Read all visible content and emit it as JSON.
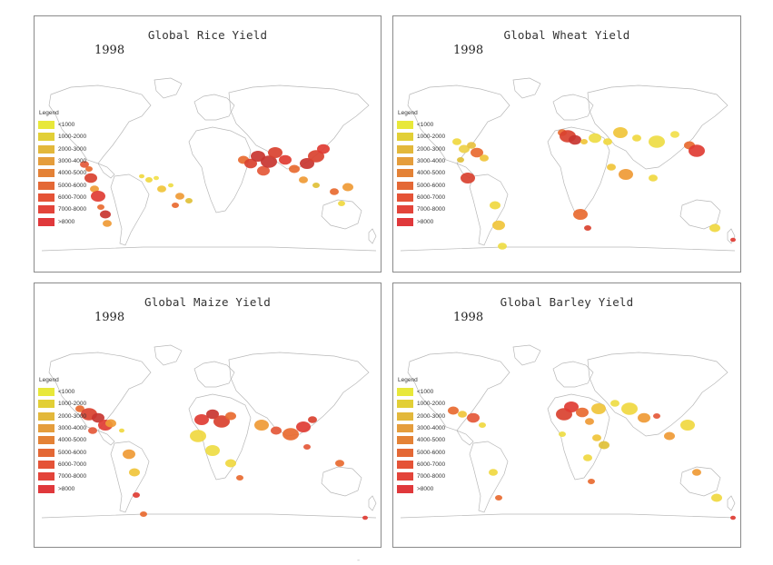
{
  "panels": [
    {
      "title": "Global Rice Yield",
      "year": "1998",
      "legend_title": "Legend",
      "patches": [
        [
          55,
          105,
          2,
          "#e45838"
        ],
        [
          60,
          110,
          1,
          "#e86a30"
        ],
        [
          62,
          120,
          4,
          "#d9412f"
        ],
        [
          66,
          132,
          2,
          "#ef9a35"
        ],
        [
          70,
          140,
          5,
          "#e03c33"
        ],
        [
          73,
          152,
          1,
          "#e86a30"
        ],
        [
          78,
          160,
          3,
          "#c83530"
        ],
        [
          80,
          170,
          2,
          "#ef9a35"
        ],
        [
          118,
          118,
          0,
          "#f0d840"
        ],
        [
          126,
          122,
          1,
          "#f0d840"
        ],
        [
          134,
          120,
          0,
          "#f2e04a"
        ],
        [
          140,
          132,
          2,
          "#f0c43a"
        ],
        [
          150,
          128,
          0,
          "#eedc44"
        ],
        [
          155,
          150,
          1,
          "#e86a30"
        ],
        [
          160,
          140,
          2,
          "#ef9a35"
        ],
        [
          170,
          145,
          1,
          "#e0c037"
        ],
        [
          230,
          100,
          3,
          "#e86a30"
        ],
        [
          238,
          104,
          4,
          "#d9412f"
        ],
        [
          246,
          96,
          5,
          "#c83530"
        ],
        [
          252,
          112,
          4,
          "#e45838"
        ],
        [
          258,
          102,
          6,
          "#c83530"
        ],
        [
          265,
          92,
          5,
          "#d9412f"
        ],
        [
          276,
          100,
          4,
          "#e03c33"
        ],
        [
          286,
          110,
          3,
          "#e86a30"
        ],
        [
          300,
          104,
          5,
          "#c83530"
        ],
        [
          310,
          96,
          6,
          "#d9412f"
        ],
        [
          318,
          88,
          4,
          "#e03c33"
        ],
        [
          296,
          122,
          2,
          "#ef9a35"
        ],
        [
          310,
          128,
          1,
          "#e0c037"
        ],
        [
          330,
          135,
          2,
          "#e86a30"
        ],
        [
          338,
          148,
          1,
          "#f0d840"
        ],
        [
          345,
          130,
          3,
          "#ef9a35"
        ]
      ],
      "legend": [
        {
          "label": "<1000",
          "color": "#e8e83a"
        },
        {
          "label": "1000-2000",
          "color": "#e2cf36"
        },
        {
          "label": "2000-3000",
          "color": "#e3b83b"
        },
        {
          "label": "3000-4000",
          "color": "#e59d3c"
        },
        {
          "label": "4000-5000",
          "color": "#e48236"
        },
        {
          "label": "5000-6000",
          "color": "#e46835"
        },
        {
          "label": "6000-7000",
          "color": "#e55337"
        },
        {
          "label": "7000-8000",
          "color": "#e3443a"
        },
        {
          "label": ">8000",
          "color": "#e0383b"
        }
      ]
    },
    {
      "title": "Global Wheat Yield",
      "year": "1998",
      "legend_title": "Legend",
      "patches": [
        [
          70,
          80,
          2,
          "#f0d840"
        ],
        [
          78,
          88,
          3,
          "#eed046"
        ],
        [
          86,
          84,
          2,
          "#e8c13e"
        ],
        [
          92,
          92,
          4,
          "#e86a30"
        ],
        [
          100,
          98,
          2,
          "#f0c43a"
        ],
        [
          74,
          100,
          1,
          "#e0c037"
        ],
        [
          82,
          120,
          5,
          "#d9412f"
        ],
        [
          112,
          150,
          3,
          "#f0d840"
        ],
        [
          116,
          172,
          4,
          "#f0c43a"
        ],
        [
          120,
          195,
          2,
          "#eedc44"
        ],
        [
          186,
          70,
          2,
          "#e86a30"
        ],
        [
          192,
          74,
          6,
          "#d9412f"
        ],
        [
          200,
          78,
          4,
          "#c83530"
        ],
        [
          210,
          80,
          1,
          "#f0c43a"
        ],
        [
          222,
          76,
          4,
          "#eedc44"
        ],
        [
          236,
          80,
          2,
          "#f0d840"
        ],
        [
          250,
          70,
          5,
          "#f0c43a"
        ],
        [
          268,
          76,
          2,
          "#f0d840"
        ],
        [
          290,
          80,
          6,
          "#eedc44"
        ],
        [
          310,
          72,
          2,
          "#f2e04a"
        ],
        [
          326,
          84,
          3,
          "#e86a30"
        ],
        [
          334,
          90,
          6,
          "#e03c33"
        ],
        [
          240,
          108,
          2,
          "#f0c43a"
        ],
        [
          256,
          116,
          5,
          "#ef9a35"
        ],
        [
          286,
          120,
          2,
          "#f0d840"
        ],
        [
          206,
          160,
          5,
          "#e86a30"
        ],
        [
          214,
          175,
          1,
          "#d9412f"
        ],
        [
          354,
          175,
          3,
          "#f0d840"
        ],
        [
          374,
          188,
          0,
          "#e03c33"
        ]
      ],
      "legend": [
        {
          "label": "<1000",
          "color": "#e8e83a"
        },
        {
          "label": "1000-2000",
          "color": "#e2cf36"
        },
        {
          "label": "2000-3000",
          "color": "#e3b83b"
        },
        {
          "label": "3000-4000",
          "color": "#e59d3c"
        },
        {
          "label": "4000-5000",
          "color": "#e48236"
        },
        {
          "label": "5000-6000",
          "color": "#e46835"
        },
        {
          "label": "6000-7000",
          "color": "#e55337"
        },
        {
          "label": "7000-8000",
          "color": "#e3443a"
        },
        {
          "label": ">8000",
          "color": "#e0383b"
        }
      ]
    },
    {
      "title": "Global Maize Yield",
      "year": "1998",
      "legend_title": "Legend",
      "patches": [
        [
          50,
          80,
          2,
          "#e86a30"
        ],
        [
          60,
          86,
          6,
          "#d9412f"
        ],
        [
          70,
          90,
          4,
          "#c83530"
        ],
        [
          78,
          98,
          5,
          "#e03c33"
        ],
        [
          64,
          104,
          2,
          "#e45838"
        ],
        [
          84,
          96,
          3,
          "#ef9a35"
        ],
        [
          96,
          104,
          0,
          "#f0d840"
        ],
        [
          104,
          130,
          4,
          "#ef9a35"
        ],
        [
          110,
          150,
          3,
          "#f0c43a"
        ],
        [
          112,
          175,
          1,
          "#e03c33"
        ],
        [
          120,
          196,
          1,
          "#e86a30"
        ],
        [
          184,
          92,
          5,
          "#e03c33"
        ],
        [
          196,
          86,
          4,
          "#c83530"
        ],
        [
          206,
          94,
          6,
          "#d9412f"
        ],
        [
          216,
          88,
          3,
          "#e86a30"
        ],
        [
          180,
          110,
          6,
          "#f0d840"
        ],
        [
          196,
          126,
          5,
          "#eedc44"
        ],
        [
          216,
          140,
          3,
          "#f0d840"
        ],
        [
          226,
          156,
          1,
          "#e86a30"
        ],
        [
          250,
          98,
          5,
          "#ef9a35"
        ],
        [
          266,
          104,
          3,
          "#e45838"
        ],
        [
          282,
          108,
          6,
          "#e86a30"
        ],
        [
          296,
          100,
          5,
          "#e03c33"
        ],
        [
          306,
          92,
          2,
          "#d9412f"
        ],
        [
          300,
          122,
          1,
          "#e45838"
        ],
        [
          336,
          140,
          2,
          "#e86a30"
        ],
        [
          364,
          200,
          0,
          "#e03c33"
        ]
      ],
      "legend": [
        {
          "label": "<1000",
          "color": "#e8e83a"
        },
        {
          "label": "1000-2000",
          "color": "#e2cf36"
        },
        {
          "label": "2000-3000",
          "color": "#e3b83b"
        },
        {
          "label": "3000-4000",
          "color": "#e59d3c"
        },
        {
          "label": "4000-5000",
          "color": "#e48236"
        },
        {
          "label": "5000-6000",
          "color": "#e46835"
        },
        {
          "label": "6000-7000",
          "color": "#e55337"
        },
        {
          "label": "7000-8000",
          "color": "#e3443a"
        },
        {
          "label": ">8000",
          "color": "#e0383b"
        }
      ]
    },
    {
      "title": "Global Barley Yield",
      "year": "1998",
      "legend_title": "Legend",
      "patches": [
        [
          66,
          82,
          3,
          "#e86a30"
        ],
        [
          76,
          86,
          2,
          "#f0c43a"
        ],
        [
          88,
          90,
          4,
          "#e45838"
        ],
        [
          98,
          98,
          1,
          "#f0d840"
        ],
        [
          110,
          150,
          2,
          "#f0d840"
        ],
        [
          116,
          178,
          1,
          "#e86a30"
        ],
        [
          188,
          86,
          6,
          "#d9412f"
        ],
        [
          196,
          78,
          5,
          "#e03c33"
        ],
        [
          208,
          84,
          4,
          "#e86a30"
        ],
        [
          216,
          94,
          2,
          "#ef9a35"
        ],
        [
          226,
          80,
          5,
          "#f0c43a"
        ],
        [
          244,
          74,
          2,
          "#eedc44"
        ],
        [
          260,
          80,
          6,
          "#f0d840"
        ],
        [
          276,
          90,
          4,
          "#ef9a35"
        ],
        [
          290,
          88,
          1,
          "#e45838"
        ],
        [
          304,
          110,
          3,
          "#ef9a35"
        ],
        [
          324,
          98,
          5,
          "#f0d840"
        ],
        [
          186,
          108,
          1,
          "#eedc44"
        ],
        [
          224,
          112,
          2,
          "#f0c43a"
        ],
        [
          232,
          120,
          3,
          "#e0c037"
        ],
        [
          214,
          134,
          2,
          "#f0d840"
        ],
        [
          218,
          160,
          1,
          "#e86a30"
        ],
        [
          334,
          150,
          2,
          "#ef9a35"
        ],
        [
          356,
          178,
          3,
          "#f0d840"
        ],
        [
          374,
          200,
          0,
          "#e03c33"
        ]
      ],
      "legend": [
        {
          "label": "<1000",
          "color": "#e8e83a"
        },
        {
          "label": "1000-2000",
          "color": "#e2cf36"
        },
        {
          "label": "2000-3000",
          "color": "#e3b83b"
        },
        {
          "label": "3000-4000",
          "color": "#e59d3c"
        },
        {
          "label": "4000-5000",
          "color": "#e48236"
        },
        {
          "label": "5000-6000",
          "color": "#e46835"
        },
        {
          "label": "6000-7000",
          "color": "#e55337"
        },
        {
          "label": "7000-8000",
          "color": "#e3443a"
        },
        {
          "label": ">8000",
          "color": "#e0383b"
        }
      ]
    }
  ],
  "footer_mark": "-"
}
